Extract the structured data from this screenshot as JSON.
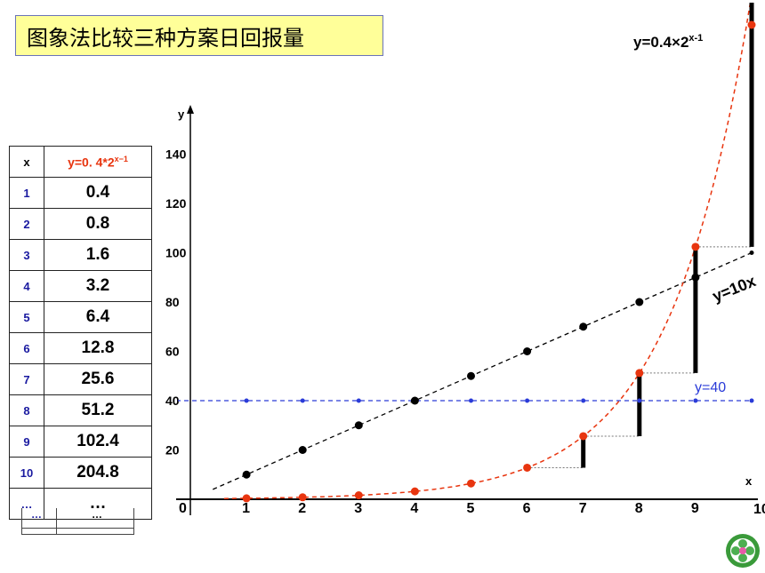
{
  "title": "图象法比较三种方案日回报量",
  "table": {
    "header_x": "x",
    "header_y_base": "y=0. 4*2",
    "header_y_exp": "x−1",
    "rows": [
      {
        "x": "1",
        "y": "0.4"
      },
      {
        "x": "2",
        "y": "0.8"
      },
      {
        "x": "3",
        "y": "1.6"
      },
      {
        "x": "4",
        "y": "3.2"
      },
      {
        "x": "5",
        "y": "6.4"
      },
      {
        "x": "6",
        "y": "12.8"
      },
      {
        "x": "7",
        "y": "25.6"
      },
      {
        "x": "8",
        "y": "51.2"
      },
      {
        "x": "9",
        "y": "102.4"
      },
      {
        "x": "10",
        "y": "204.8"
      },
      {
        "x": "…",
        "y": "…"
      }
    ],
    "tail_x": "…",
    "tail_y": "…"
  },
  "chart_data": {
    "type": "line",
    "xlabel": "x",
    "ylabel": "y",
    "origin_label": "0",
    "x_ticks": [
      1,
      2,
      3,
      4,
      5,
      6,
      7,
      8,
      9,
      10
    ],
    "y_ticks": [
      20,
      40,
      60,
      80,
      100,
      120,
      140
    ],
    "xlim": [
      0,
      10
    ],
    "ylim": [
      0,
      150
    ],
    "grid": false,
    "series": [
      {
        "name": "y=40",
        "color": "#2a3bd8",
        "style": "dashed",
        "x": [
          1,
          2,
          3,
          4,
          5,
          6,
          7,
          8,
          9,
          10
        ],
        "y": [
          40,
          40,
          40,
          40,
          40,
          40,
          40,
          40,
          40,
          40
        ]
      },
      {
        "name": "y=10x",
        "color": "#000000",
        "style": "dashed",
        "x": [
          1,
          2,
          3,
          4,
          5,
          6,
          7,
          8,
          9,
          10
        ],
        "y": [
          10,
          20,
          30,
          40,
          50,
          60,
          70,
          80,
          90,
          100
        ]
      },
      {
        "name": "y=0.4×2^(x-1)",
        "color": "#e8350f",
        "style": "dashed",
        "x": [
          1,
          2,
          3,
          4,
          5,
          6,
          7,
          8,
          9,
          10
        ],
        "y": [
          0.4,
          0.8,
          1.6,
          3.2,
          6.4,
          12.8,
          25.6,
          51.2,
          102.4,
          204.8
        ]
      }
    ],
    "annotations": {
      "exp_label_base": "y=0.4×2",
      "exp_label_exp": "x-1",
      "linear_label": "y=10x",
      "const_label": "y=40"
    }
  }
}
